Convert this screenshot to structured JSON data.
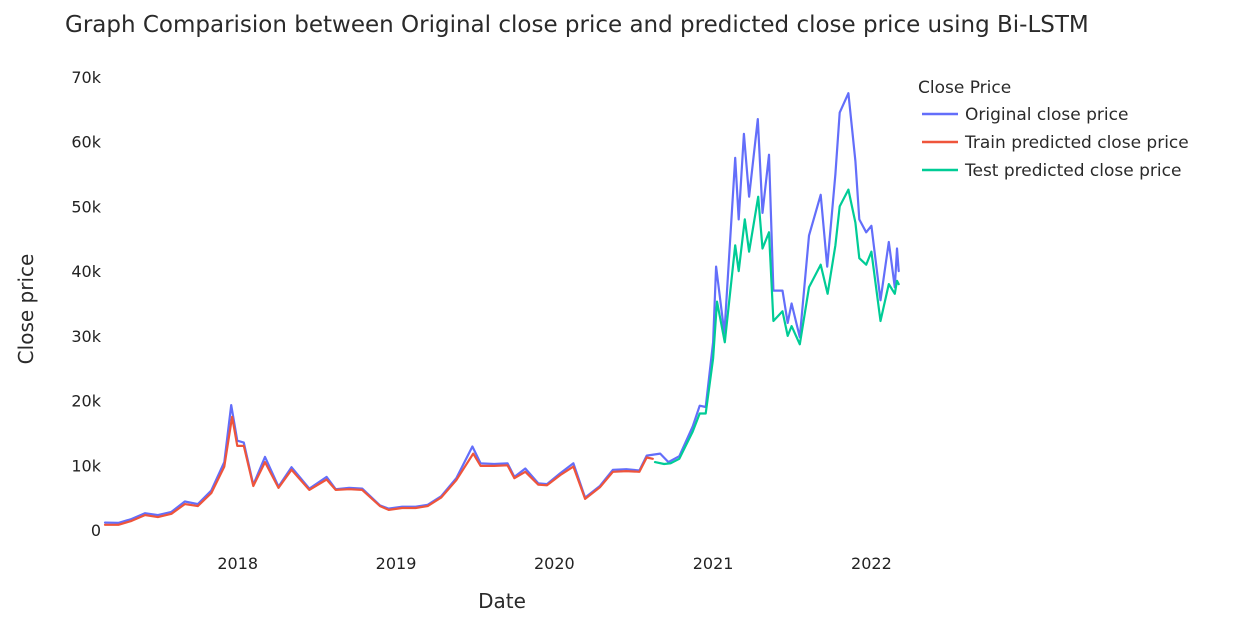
{
  "chart_data": {
    "type": "line",
    "title": "Graph Comparision between Original close price and predicted close price using Bi-LSTM",
    "xlabel": "Date",
    "ylabel": "Close price",
    "xlim": [
      "2017-03-01",
      "2022-03-01"
    ],
    "ylim": [
      0,
      70000
    ],
    "x_ticks": [
      {
        "date": "2018-01-01",
        "label": "2018"
      },
      {
        "date": "2019-01-01",
        "label": "2019"
      },
      {
        "date": "2020-01-01",
        "label": "2020"
      },
      {
        "date": "2021-01-01",
        "label": "2021"
      },
      {
        "date": "2022-01-01",
        "label": "2022"
      }
    ],
    "y_ticks": [
      {
        "value": 0,
        "label": "0"
      },
      {
        "value": 10000,
        "label": "10k"
      },
      {
        "value": 20000,
        "label": "20k"
      },
      {
        "value": 30000,
        "label": "30k"
      },
      {
        "value": 40000,
        "label": "40k"
      },
      {
        "value": 50000,
        "label": "50k"
      },
      {
        "value": 60000,
        "label": "60k"
      },
      {
        "value": 70000,
        "label": "70k"
      }
    ],
    "grid": false,
    "legend": {
      "title": "Close Price",
      "position": "top-right"
    },
    "series": [
      {
        "name": "Original close price",
        "color": "#636efa",
        "points": [
          [
            "2017-03-01",
            1150
          ],
          [
            "2017-04-01",
            1100
          ],
          [
            "2017-05-01",
            1700
          ],
          [
            "2017-06-01",
            2600
          ],
          [
            "2017-07-01",
            2300
          ],
          [
            "2017-08-01",
            2800
          ],
          [
            "2017-09-01",
            4400
          ],
          [
            "2017-10-01",
            4000
          ],
          [
            "2017-11-01",
            6100
          ],
          [
            "2017-12-01",
            10500
          ],
          [
            "2017-12-17",
            19300
          ],
          [
            "2017-12-31",
            13800
          ],
          [
            "2018-01-15",
            13500
          ],
          [
            "2018-02-06",
            7000
          ],
          [
            "2018-03-05",
            11300
          ],
          [
            "2018-04-05",
            6700
          ],
          [
            "2018-05-05",
            9700
          ],
          [
            "2018-06-15",
            6400
          ],
          [
            "2018-07-25",
            8200
          ],
          [
            "2018-08-15",
            6300
          ],
          [
            "2018-09-15",
            6500
          ],
          [
            "2018-10-15",
            6400
          ],
          [
            "2018-11-25",
            3800
          ],
          [
            "2018-12-15",
            3300
          ],
          [
            "2019-01-15",
            3600
          ],
          [
            "2019-02-15",
            3600
          ],
          [
            "2019-03-15",
            3900
          ],
          [
            "2019-04-15",
            5200
          ],
          [
            "2019-05-20",
            8000
          ],
          [
            "2019-06-26",
            12900
          ],
          [
            "2019-07-15",
            10300
          ],
          [
            "2019-08-15",
            10200
          ],
          [
            "2019-09-15",
            10300
          ],
          [
            "2019-10-01",
            8200
          ],
          [
            "2019-10-26",
            9500
          ],
          [
            "2019-11-25",
            7200
          ],
          [
            "2019-12-15",
            7100
          ],
          [
            "2020-01-15",
            8800
          ],
          [
            "2020-02-14",
            10300
          ],
          [
            "2020-03-12",
            5000
          ],
          [
            "2020-04-15",
            6800
          ],
          [
            "2020-05-15",
            9300
          ],
          [
            "2020-06-15",
            9400
          ],
          [
            "2020-07-15",
            9200
          ],
          [
            "2020-08-01",
            11500
          ],
          [
            "2020-09-01",
            11800
          ],
          [
            "2020-09-20",
            10500
          ],
          [
            "2020-10-15",
            11400
          ],
          [
            "2020-11-15",
            16000
          ],
          [
            "2020-12-01",
            19200
          ],
          [
            "2020-12-15",
            19000
          ],
          [
            "2021-01-01",
            29000
          ],
          [
            "2021-01-08",
            40700
          ],
          [
            "2021-01-27",
            30400
          ],
          [
            "2021-02-21",
            57500
          ],
          [
            "2021-03-01",
            48000
          ],
          [
            "2021-03-13",
            61200
          ],
          [
            "2021-03-25",
            51500
          ],
          [
            "2021-04-14",
            63500
          ],
          [
            "2021-04-25",
            49000
          ],
          [
            "2021-05-10",
            58000
          ],
          [
            "2021-05-20",
            37000
          ],
          [
            "2021-06-10",
            37000
          ],
          [
            "2021-06-22",
            32000
          ],
          [
            "2021-07-01",
            35000
          ],
          [
            "2021-07-20",
            29800
          ],
          [
            "2021-08-10",
            45500
          ],
          [
            "2021-09-06",
            51800
          ],
          [
            "2021-09-21",
            40700
          ],
          [
            "2021-10-10",
            55000
          ],
          [
            "2021-10-20",
            64500
          ],
          [
            "2021-11-09",
            67500
          ],
          [
            "2021-11-25",
            57000
          ],
          [
            "2021-12-04",
            48000
          ],
          [
            "2021-12-20",
            46000
          ],
          [
            "2022-01-01",
            47000
          ],
          [
            "2022-01-22",
            35500
          ],
          [
            "2022-02-10",
            44500
          ],
          [
            "2022-02-24",
            37500
          ],
          [
            "2022-03-01",
            43500
          ],
          [
            "2022-03-05",
            40000
          ]
        ]
      },
      {
        "name": "Train predicted close price",
        "color": "#ef553b",
        "points": [
          [
            "2017-03-01",
            800
          ],
          [
            "2017-04-01",
            800
          ],
          [
            "2017-05-01",
            1400
          ],
          [
            "2017-06-01",
            2300
          ],
          [
            "2017-07-01",
            2000
          ],
          [
            "2017-08-01",
            2500
          ],
          [
            "2017-09-01",
            4000
          ],
          [
            "2017-10-01",
            3700
          ],
          [
            "2017-11-01",
            5700
          ],
          [
            "2017-12-01",
            9800
          ],
          [
            "2017-12-19",
            17500
          ],
          [
            "2017-12-31",
            13000
          ],
          [
            "2018-01-15",
            13000
          ],
          [
            "2018-02-06",
            6800
          ],
          [
            "2018-03-05",
            10500
          ],
          [
            "2018-04-05",
            6500
          ],
          [
            "2018-05-05",
            9300
          ],
          [
            "2018-06-15",
            6200
          ],
          [
            "2018-07-25",
            7800
          ],
          [
            "2018-08-15",
            6200
          ],
          [
            "2018-09-15",
            6300
          ],
          [
            "2018-10-15",
            6200
          ],
          [
            "2018-11-25",
            3700
          ],
          [
            "2018-12-15",
            3100
          ],
          [
            "2019-01-15",
            3400
          ],
          [
            "2019-02-15",
            3400
          ],
          [
            "2019-03-15",
            3700
          ],
          [
            "2019-04-15",
            5000
          ],
          [
            "2019-05-20",
            7700
          ],
          [
            "2019-06-28",
            11800
          ],
          [
            "2019-07-15",
            9900
          ],
          [
            "2019-08-15",
            9900
          ],
          [
            "2019-09-15",
            10000
          ],
          [
            "2019-10-01",
            8000
          ],
          [
            "2019-10-26",
            9000
          ],
          [
            "2019-11-25",
            7000
          ],
          [
            "2019-12-15",
            6900
          ],
          [
            "2020-01-15",
            8500
          ],
          [
            "2020-02-14",
            9800
          ],
          [
            "2020-03-12",
            4800
          ],
          [
            "2020-04-15",
            6600
          ],
          [
            "2020-05-15",
            9000
          ],
          [
            "2020-06-15",
            9100
          ],
          [
            "2020-07-15",
            9000
          ],
          [
            "2020-08-01",
            11200
          ],
          [
            "2020-08-15",
            11000
          ]
        ]
      },
      {
        "name": "Test predicted close price",
        "color": "#00cc96",
        "points": [
          [
            "2020-08-20",
            10500
          ],
          [
            "2020-09-10",
            10200
          ],
          [
            "2020-09-25",
            10300
          ],
          [
            "2020-10-15",
            11000
          ],
          [
            "2020-11-15",
            15200
          ],
          [
            "2020-12-01",
            18000
          ],
          [
            "2020-12-15",
            18000
          ],
          [
            "2021-01-01",
            26500
          ],
          [
            "2021-01-10",
            35300
          ],
          [
            "2021-01-28",
            29000
          ],
          [
            "2021-02-21",
            44000
          ],
          [
            "2021-03-01",
            40000
          ],
          [
            "2021-03-15",
            48000
          ],
          [
            "2021-03-25",
            43000
          ],
          [
            "2021-04-15",
            51500
          ],
          [
            "2021-04-25",
            43500
          ],
          [
            "2021-05-10",
            46000
          ],
          [
            "2021-05-20",
            32300
          ],
          [
            "2021-06-10",
            33800
          ],
          [
            "2021-06-22",
            30000
          ],
          [
            "2021-07-01",
            31500
          ],
          [
            "2021-07-20",
            28700
          ],
          [
            "2021-08-10",
            37500
          ],
          [
            "2021-09-06",
            41000
          ],
          [
            "2021-09-22",
            36500
          ],
          [
            "2021-10-10",
            44000
          ],
          [
            "2021-10-20",
            50000
          ],
          [
            "2021-11-09",
            52600
          ],
          [
            "2021-11-25",
            47500
          ],
          [
            "2021-12-04",
            42000
          ],
          [
            "2021-12-20",
            41000
          ],
          [
            "2022-01-01",
            43000
          ],
          [
            "2022-01-22",
            32300
          ],
          [
            "2022-02-10",
            38000
          ],
          [
            "2022-02-24",
            36500
          ],
          [
            "2022-03-01",
            38500
          ],
          [
            "2022-03-05",
            38000
          ]
        ]
      }
    ]
  }
}
